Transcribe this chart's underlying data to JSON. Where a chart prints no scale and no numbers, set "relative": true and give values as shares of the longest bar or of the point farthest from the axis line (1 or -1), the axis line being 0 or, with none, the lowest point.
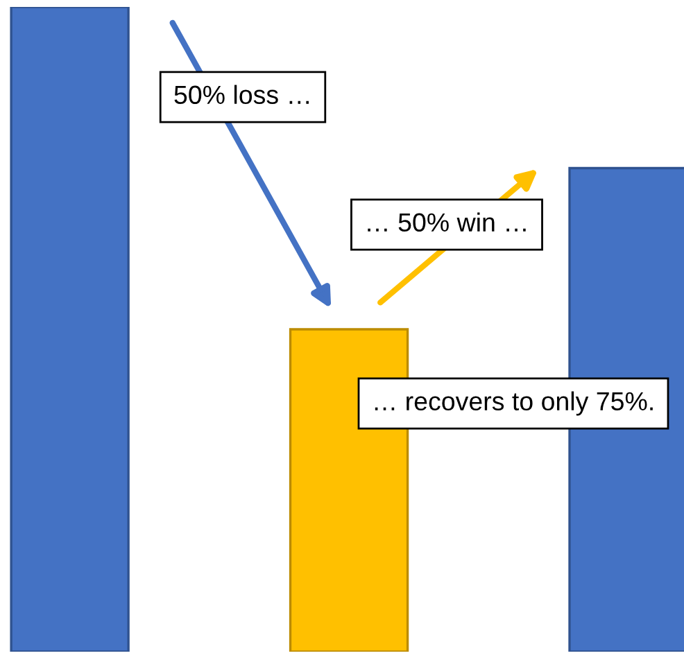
{
  "chart_data": {
    "type": "bar",
    "relative": true,
    "categories": [
      null,
      null,
      null
    ],
    "values": [
      1,
      0.5,
      0.75
    ],
    "colors": [
      "#4472c4",
      "#ffc000",
      "#4472c4"
    ],
    "annotations": [
      "50% loss …",
      "… 50% win …",
      "… recovers to only 75%."
    ],
    "grid": false,
    "legend": false
  }
}
